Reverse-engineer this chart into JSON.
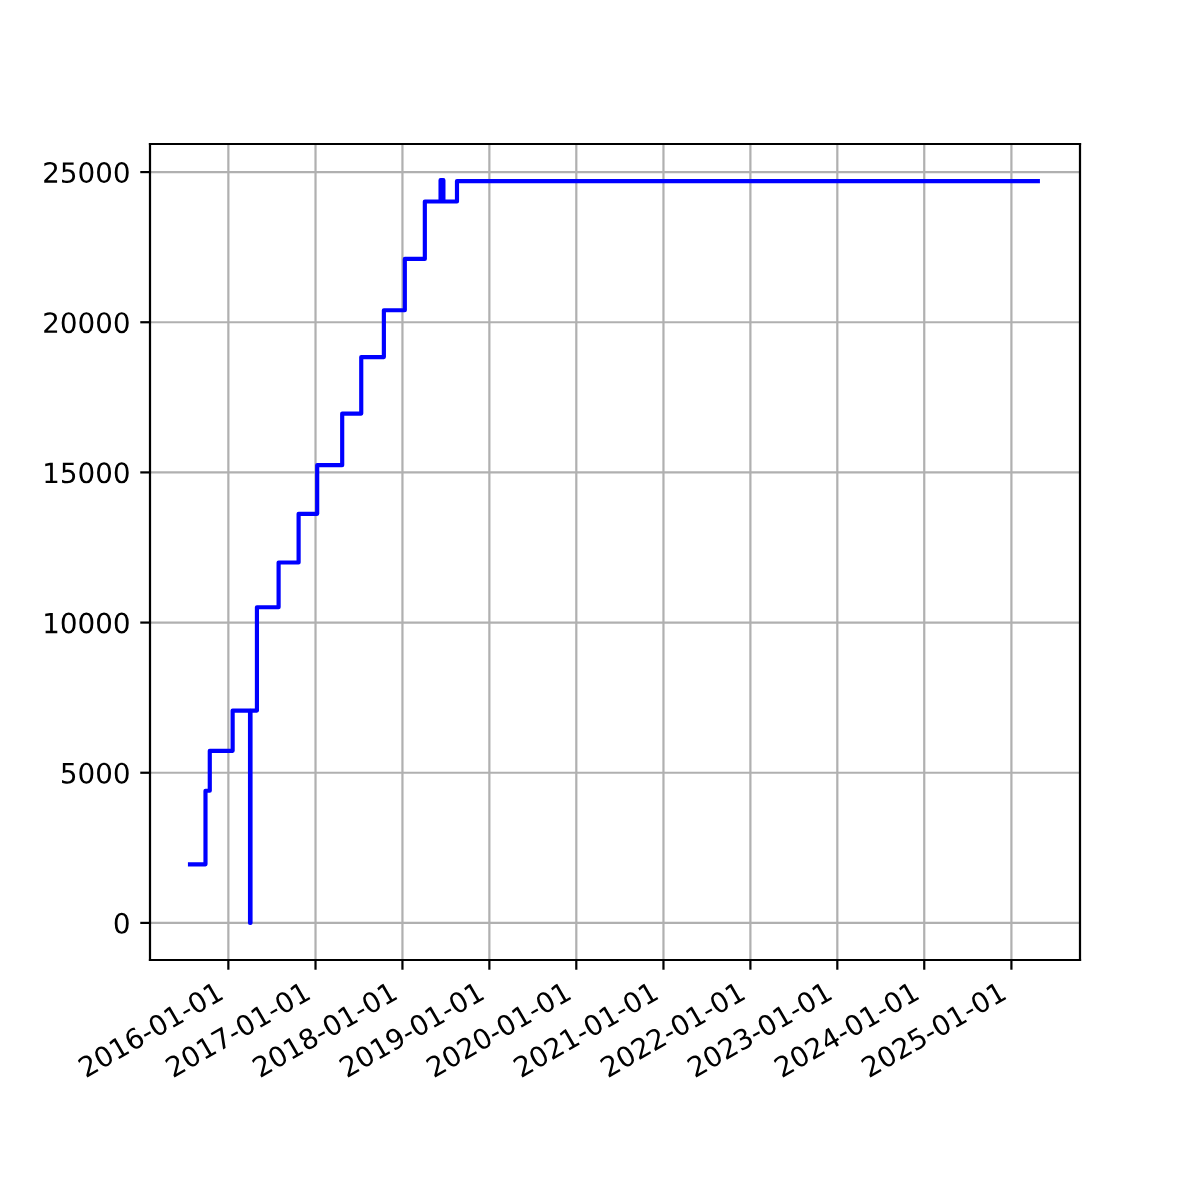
{
  "chart_data": {
    "type": "step",
    "x": [
      "2015-07-24",
      "2015-09-27",
      "2015-10-15",
      "2016-01-19",
      "2016-04-01",
      "2016-04-03",
      "2016-04-30",
      "2016-07-30",
      "2016-10-22",
      "2017-01-08",
      "2017-04-23",
      "2017-07-12",
      "2017-10-15",
      "2018-01-11",
      "2018-04-05",
      "2018-06-10",
      "2018-06-14",
      "2018-06-18",
      "2018-06-22",
      "2018-08-18",
      "2025-04-22"
    ],
    "series": [
      {
        "color": "#0000ff",
        "values": [
          1950,
          4400,
          5730,
          7070,
          0,
          7070,
          10510,
          12000,
          13620,
          15240,
          16960,
          18840,
          20400,
          22110,
          24020,
          24730,
          24020,
          24730,
          24020,
          24700,
          24700
        ]
      }
    ],
    "xlim": [
      "2015-02-06",
      "2025-10-16"
    ],
    "ylim": [
      -1235,
      25935
    ],
    "xticks": [
      "2016-01-01",
      "2017-01-01",
      "2018-01-01",
      "2019-01-01",
      "2020-01-01",
      "2021-01-01",
      "2022-01-01",
      "2023-01-01",
      "2024-01-01",
      "2025-01-01"
    ],
    "yticks": [
      0,
      5000,
      10000,
      15000,
      20000,
      25000
    ],
    "grid": true
  }
}
